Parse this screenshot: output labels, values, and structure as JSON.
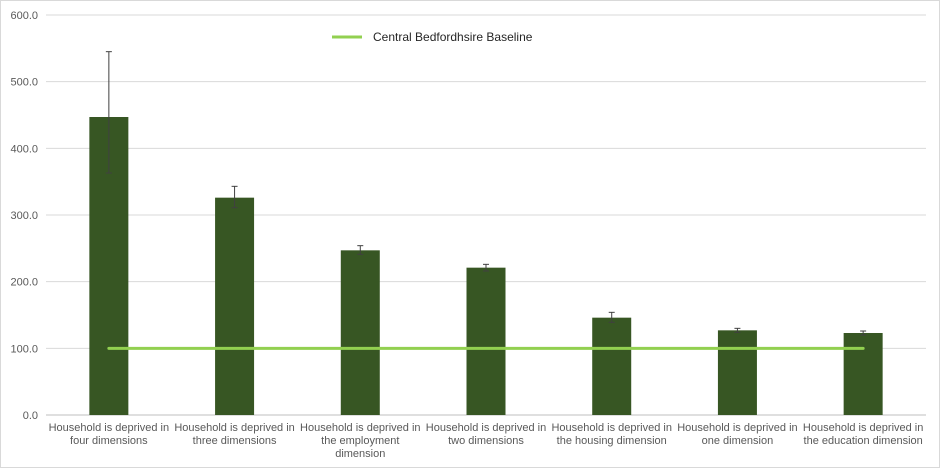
{
  "chart_data": {
    "type": "bar",
    "title": "",
    "xlabel": "",
    "ylabel": "",
    "ylim": [
      0,
      600
    ],
    "yticks": [
      "0.0",
      "100.0",
      "200.0",
      "300.0",
      "400.0",
      "500.0",
      "600.0"
    ],
    "grid": true,
    "legend_position": "top-center",
    "categories": [
      "Household is deprived in four dimensions",
      "Household is deprived in three dimensions",
      "Household is deprived in the employment dimension",
      "Household is deprived in two dimensions",
      "Household is deprived in the housing dimension",
      "Household is deprived in one dimension",
      "Household is deprived in the education dimension"
    ],
    "category_label_lines": [
      [
        "Household is deprived in",
        "four dimensions"
      ],
      [
        "Household is deprived in",
        "three dimensions"
      ],
      [
        "Household is deprived in",
        "the employment",
        "dimension"
      ],
      [
        "Household is deprived in",
        "two dimensions"
      ],
      [
        "Household is deprived in",
        "the housing dimension"
      ],
      [
        "Household is deprived in",
        "one dimension"
      ],
      [
        "Household is deprived in",
        "the education dimension"
      ]
    ],
    "series": [
      {
        "type": "bar",
        "values": [
          447,
          326,
          247,
          221,
          146,
          127,
          123
        ],
        "error_low": [
          363,
          311,
          241,
          216,
          139,
          124,
          120
        ],
        "error_high": [
          545,
          343,
          254,
          226,
          154,
          130,
          126
        ],
        "color": "#375623"
      },
      {
        "name": "Central Bedfordhsire Baseline",
        "type": "line",
        "values": [
          100,
          100,
          100,
          100,
          100,
          100,
          100
        ],
        "color": "#92d050"
      }
    ]
  }
}
